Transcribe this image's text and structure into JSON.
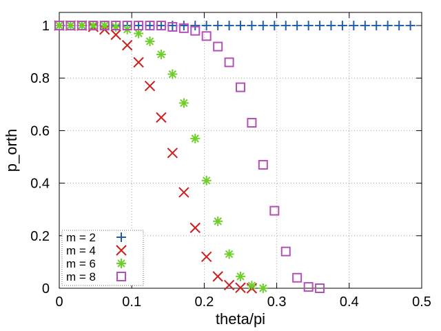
{
  "chart_data": {
    "type": "scatter",
    "title": "",
    "xlabel": "theta/pi",
    "ylabel": "p_orth",
    "xlim": [
      0,
      0.5
    ],
    "ylim": [
      0,
      1.05
    ],
    "x_ticks": [
      "0",
      "0.1",
      "0.2",
      "0.3",
      "0.4",
      "0.5"
    ],
    "y_ticks": [
      "0",
      "0.2",
      "0.4",
      "0.6",
      "0.8",
      "1"
    ],
    "grid": true,
    "legend_position": "bottom-left",
    "series": [
      {
        "name": "m = 2",
        "marker": "plus",
        "color": "#1f5fa8",
        "x": [
          0,
          0.0156,
          0.0312,
          0.0469,
          0.0625,
          0.0781,
          0.0938,
          0.1094,
          0.125,
          0.1406,
          0.1562,
          0.1719,
          0.1875,
          0.2031,
          0.2188,
          0.2344,
          0.25,
          0.2656,
          0.2812,
          0.2969,
          0.3125,
          0.3281,
          0.3438,
          0.3594,
          0.375,
          0.3906,
          0.4062,
          0.4219,
          0.4375,
          0.4531,
          0.4688,
          0.4844
        ],
        "y": [
          1,
          1,
          1,
          1,
          1,
          1,
          1,
          1,
          1,
          1,
          1,
          1,
          1,
          1,
          1,
          1,
          1,
          1,
          1,
          1,
          1,
          1,
          1,
          1,
          1,
          1,
          1,
          1,
          1,
          1,
          1,
          1
        ]
      },
      {
        "name": "m = 4",
        "marker": "cross",
        "color": "#cc1f1f",
        "x": [
          0,
          0.0156,
          0.0312,
          0.0469,
          0.0625,
          0.0781,
          0.0938,
          0.1094,
          0.125,
          0.1406,
          0.1562,
          0.1719,
          0.1875,
          0.2031,
          0.2188,
          0.2344,
          0.25,
          0.2656
        ],
        "y": [
          1,
          1,
          1,
          0.995,
          0.985,
          0.965,
          0.925,
          0.86,
          0.77,
          0.65,
          0.515,
          0.365,
          0.23,
          0.12,
          0.045,
          0.012,
          0.002,
          0
        ]
      },
      {
        "name": "m = 6",
        "marker": "star",
        "color": "#6fcf2a",
        "x": [
          0,
          0.0156,
          0.0312,
          0.0469,
          0.0625,
          0.0781,
          0.0938,
          0.1094,
          0.125,
          0.1406,
          0.1562,
          0.1719,
          0.1875,
          0.2031,
          0.2188,
          0.2344,
          0.25,
          0.2656,
          0.2812
        ],
        "y": [
          1,
          1,
          1,
          1,
          1,
          0.995,
          0.985,
          0.97,
          0.94,
          0.89,
          0.815,
          0.705,
          0.57,
          0.41,
          0.255,
          0.13,
          0.045,
          0.01,
          0
        ]
      },
      {
        "name": "m = 8",
        "marker": "square",
        "color": "#b44fb8",
        "x": [
          0,
          0.0156,
          0.0312,
          0.0469,
          0.0625,
          0.0781,
          0.0938,
          0.1094,
          0.125,
          0.1406,
          0.1562,
          0.1719,
          0.1875,
          0.2031,
          0.2188,
          0.2344,
          0.25,
          0.2656,
          0.2812,
          0.2969,
          0.3125,
          0.3281,
          0.3438,
          0.3594
        ],
        "y": [
          1,
          1,
          1,
          1,
          1,
          1,
          1,
          1,
          1,
          1,
          0.995,
          0.99,
          0.98,
          0.96,
          0.92,
          0.86,
          0.765,
          0.63,
          0.47,
          0.295,
          0.14,
          0.04,
          0.005,
          0
        ]
      }
    ]
  }
}
